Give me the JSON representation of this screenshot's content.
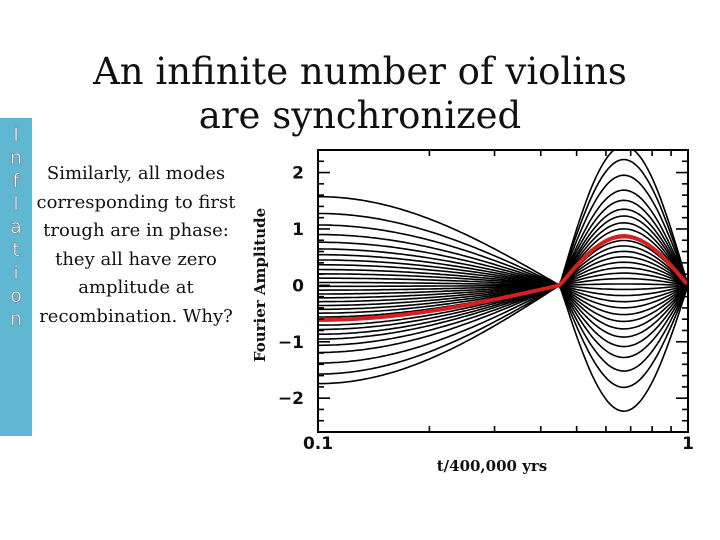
{
  "slide": {
    "title": "An infinite number of violins are synchronized",
    "side_letters": [
      "I",
      "n",
      "f",
      "l",
      "a",
      "t",
      "i",
      "o",
      "n"
    ],
    "body_text": "Similarly, all modes corresponding to first trough are in phase: they all have zero amplitude at recombination. Why?",
    "stripe_color": "#5fb7d2"
  },
  "chart_data": {
    "type": "line",
    "ylabel": "Fourier Amplitude",
    "xlabel": "t/400,000 yrs",
    "x_scale": "log",
    "xlim": [
      0.1,
      1
    ],
    "ylim": [
      -2.6,
      2.4
    ],
    "x_ticks": [
      "0.1",
      "1"
    ],
    "y_ticks": [
      {
        "value": 2,
        "label": "2"
      },
      {
        "value": 1,
        "label": "1"
      },
      {
        "value": 0,
        "label": "0"
      },
      {
        "value": -1,
        "label": "−1"
      },
      {
        "value": -2,
        "label": "−2"
      }
    ],
    "node_x": 0.45,
    "end_x": 1,
    "mode_peak_x": 0.78,
    "mode_peaks": [
      2.05,
      1.85,
      1.62,
      1.4,
      1.25,
      1.12,
      1.02,
      0.92,
      0.83,
      0.74,
      0.66,
      0.58,
      0.5,
      0.42,
      0.34,
      0.26,
      0.18,
      0.1,
      0.02,
      -0.06,
      -0.15,
      -0.24,
      -0.33,
      -0.43,
      -0.53,
      -0.64,
      -0.76,
      -0.9,
      -1.06,
      -1.26,
      -1.5,
      -1.85
    ],
    "highlight_peak": 0.72,
    "highlight_color": "#d42020",
    "line_color": "#000000"
  }
}
